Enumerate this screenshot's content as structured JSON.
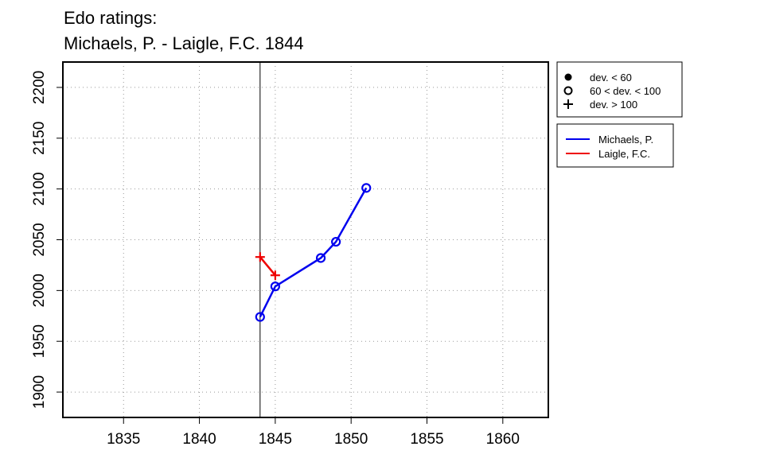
{
  "chart_data": {
    "type": "line",
    "title": "Edo ratings:",
    "subtitle": "Michaels, P. - Laigle, F.C. 1844",
    "xlabel": "",
    "ylabel": "",
    "xlim": [
      1831,
      1863
    ],
    "ylim": [
      1875,
      2225
    ],
    "x_ticks": [
      1835,
      1840,
      1845,
      1850,
      1855,
      1860
    ],
    "y_ticks": [
      1900,
      1950,
      2000,
      2050,
      2100,
      2150,
      2200
    ],
    "grid": true,
    "vline_x": 1844,
    "series": [
      {
        "name": "Michaels, P.",
        "color": "#0000ee",
        "points": [
          {
            "x": 1844,
            "y": 1974,
            "marker": "open-circle"
          },
          {
            "x": 1845,
            "y": 2004,
            "marker": "open-circle"
          },
          {
            "x": 1848,
            "y": 2032,
            "marker": "open-circle"
          },
          {
            "x": 1849,
            "y": 2048,
            "marker": "open-circle"
          },
          {
            "x": 1851,
            "y": 2101,
            "marker": "open-circle"
          }
        ]
      },
      {
        "name": "Laigle, F.C.",
        "color": "#ee0000",
        "points": [
          {
            "x": 1844,
            "y": 2033,
            "marker": "plus"
          },
          {
            "x": 1845,
            "y": 2015,
            "marker": "plus"
          }
        ]
      }
    ],
    "legend_markers": [
      {
        "label": "dev. < 60",
        "marker": "filled-circle"
      },
      {
        "label": "60 < dev. < 100",
        "marker": "open-circle"
      },
      {
        "label": "dev. > 100",
        "marker": "plus"
      }
    ],
    "legend_placement": "right"
  }
}
